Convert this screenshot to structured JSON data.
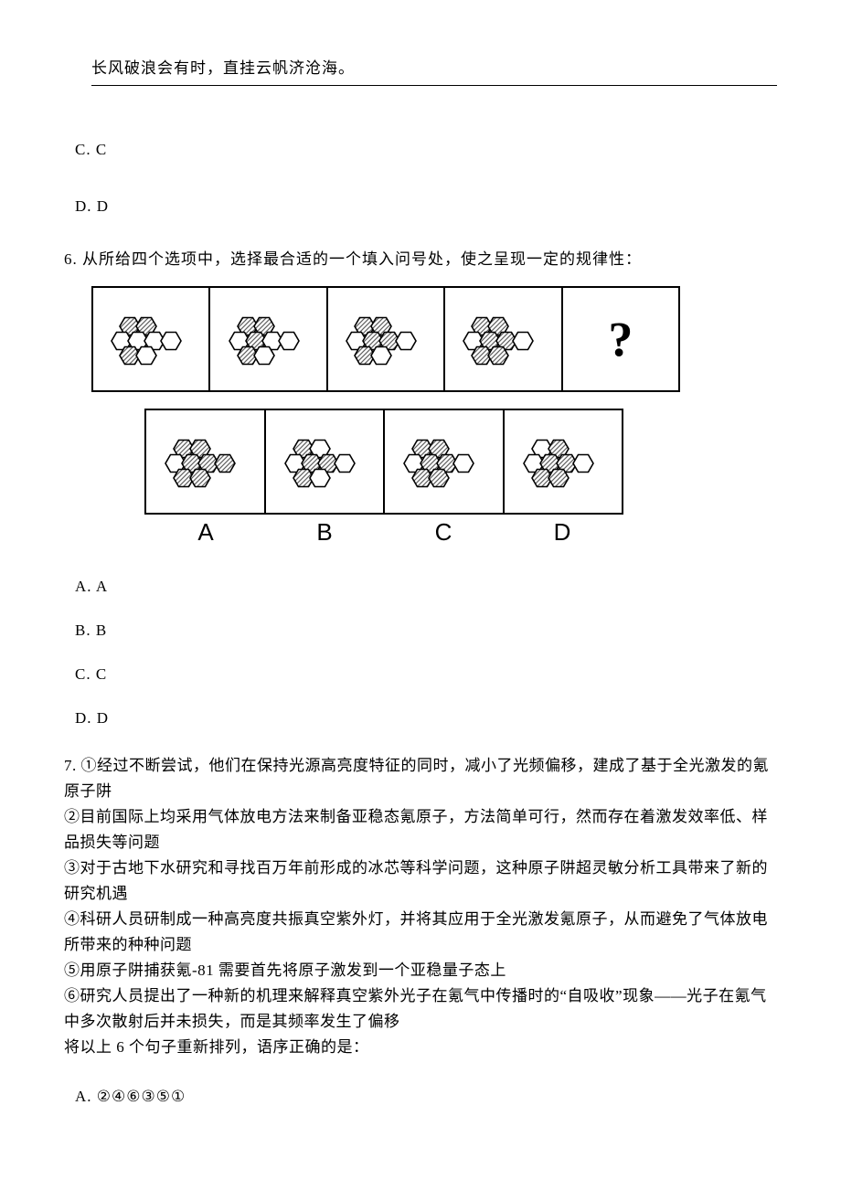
{
  "header": {
    "quote": "长风破浪会有时，直挂云帆济沧海。"
  },
  "q5_tail_options": {
    "c": "C. C",
    "d": "D. D"
  },
  "q6": {
    "stem": "6. 从所给四个选项中，选择最合适的一个填入问号处，使之呈现一定的规律性：",
    "qmark": "?",
    "labels": [
      "A",
      "B",
      "C",
      "D"
    ],
    "options": {
      "a": "A. A",
      "b": "B. B",
      "c": "C. C",
      "d": "D. D"
    },
    "hex": {
      "hatch_color": "#606060",
      "stroke": "#000000",
      "bg": "#ffffff",
      "row1": [
        [
          1,
          1,
          0,
          0,
          0,
          0,
          1,
          0
        ],
        [
          1,
          1,
          0,
          1,
          0,
          0,
          1,
          0
        ],
        [
          1,
          1,
          0,
          1,
          1,
          0,
          1,
          0
        ],
        [
          1,
          1,
          0,
          1,
          1,
          0,
          1,
          1
        ],
        null
      ],
      "row2": [
        [
          1,
          1,
          0,
          1,
          1,
          1,
          1,
          1
        ],
        [
          1,
          0,
          0,
          1,
          1,
          0,
          1,
          0
        ],
        [
          1,
          1,
          0,
          1,
          1,
          0,
          1,
          1
        ],
        [
          0,
          1,
          0,
          1,
          1,
          0,
          1,
          1
        ]
      ]
    }
  },
  "q7": {
    "lines": [
      "7. ①经过不断尝试，他们在保持光源高亮度特征的同时，减小了光频偏移，建成了基于全光激发的氪原子阱",
      "②目前国际上均采用气体放电方法来制备亚稳态氪原子，方法简单可行，然而存在着激发效率低、样品损失等问题",
      "③对于古地下水研究和寻找百万年前形成的冰芯等科学问题，这种原子阱超灵敏分析工具带来了新的研究机遇",
      "④科研人员研制成一种高亮度共振真空紫外灯，并将其应用于全光激发氪原子，从而避免了气体放电所带来的种种问题",
      "⑤用原子阱捕获氪-81 需要首先将原子激发到一个亚稳量子态上",
      "⑥研究人员提出了一种新的机理来解释真空紫外光子在氪气中传播时的“自吸收”现象——光子在氪气中多次散射后并未损失，而是其频率发生了偏移",
      "将以上 6 个句子重新排列，语序正确的是："
    ],
    "options": {
      "a": "A. ②④⑥③⑤①"
    }
  }
}
